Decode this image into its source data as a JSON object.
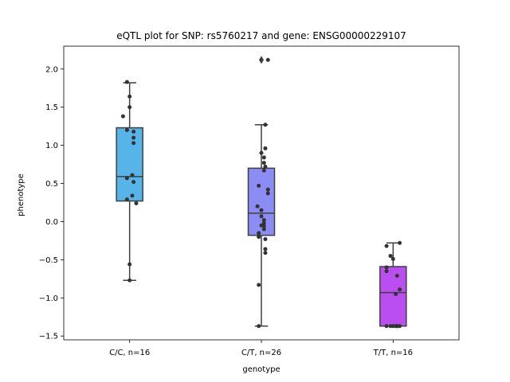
{
  "chart_data": {
    "type": "box",
    "title": "eQTL plot for SNP: rs5760217 and gene: ENSG00000229107",
    "xlabel": "genotype",
    "ylabel": "phenotype",
    "ylim": [
      -1.55,
      2.3
    ],
    "yticks": [
      -1.5,
      -1.0,
      -0.5,
      0.0,
      0.5,
      1.0,
      1.5,
      2.0
    ],
    "ytick_labels": [
      "−1.5",
      "−1.0",
      "−0.5",
      "0.0",
      "0.5",
      "1.0",
      "1.5",
      "2.0"
    ],
    "grid": false,
    "legend": "none",
    "categories": [
      "C/C, n=16",
      "C/T, n=26",
      "T/T, n=16"
    ],
    "boxes": [
      {
        "category": "C/C, n=16",
        "color": "#56b4e9",
        "q1": 0.27,
        "median": 0.59,
        "q3": 1.23,
        "whisker_low": -0.77,
        "whisker_high": 1.82,
        "outliers": []
      },
      {
        "category": "C/T, n=26",
        "color": "#8c8cf5",
        "q1": -0.18,
        "median": 0.11,
        "q3": 0.7,
        "whisker_low": -1.37,
        "whisker_high": 1.27,
        "outliers": [
          2.12
        ]
      },
      {
        "category": "T/T, n=16",
        "color": "#bb4ef0",
        "q1": -1.37,
        "median": -0.93,
        "q3": -0.59,
        "whisker_low": -1.37,
        "whisker_high": -0.28,
        "outliers": []
      }
    ],
    "points": [
      {
        "category": "C/C, n=16",
        "jitter": [
          -0.02,
          0.0,
          0.0,
          -0.05,
          -0.02,
          0.03,
          0.03,
          0.03,
          0.02,
          -0.02,
          0.03,
          0.02,
          0.05,
          -0.02,
          0.0,
          0.0
        ],
        "values": [
          1.83,
          1.64,
          1.5,
          1.38,
          1.2,
          1.18,
          1.1,
          1.03,
          0.61,
          0.57,
          0.52,
          0.34,
          0.24,
          0.29,
          -0.56,
          -0.77
        ]
      },
      {
        "category": "C/T, n=26",
        "jitter": [
          0.05,
          0.03,
          0.0,
          0.03,
          0.02,
          0.02,
          0.03,
          0.02,
          0.05,
          0.05,
          -0.02,
          -0.03,
          0.0,
          0.0,
          0.02,
          0.02,
          0.0,
          -0.02,
          0.03,
          0.03,
          -0.02,
          0.02,
          0.03,
          0.02,
          -0.02,
          -0.02
        ],
        "values": [
          2.12,
          1.27,
          0.9,
          0.96,
          0.84,
          0.77,
          0.72,
          0.67,
          0.42,
          0.37,
          0.47,
          0.2,
          0.15,
          0.07,
          0.02,
          -0.02,
          -0.05,
          -0.15,
          -0.23,
          -0.36,
          -0.2,
          -0.06,
          -0.41,
          -0.1,
          -0.83,
          -1.37
        ]
      },
      {
        "category": "T/T, n=16",
        "jitter": [
          -0.05,
          -0.02,
          0.0,
          0.05,
          -0.05,
          -0.05,
          0.03,
          0.05,
          0.02,
          0.03,
          -0.05,
          -0.02,
          0.0,
          0.02,
          0.03,
          0.05
        ],
        "values": [
          -0.32,
          -0.45,
          -0.49,
          -0.28,
          -0.6,
          -0.65,
          -0.71,
          -0.89,
          -0.95,
          -1.37,
          -1.37,
          -1.37,
          -1.37,
          -1.37,
          -1.37,
          -1.37
        ]
      }
    ]
  }
}
